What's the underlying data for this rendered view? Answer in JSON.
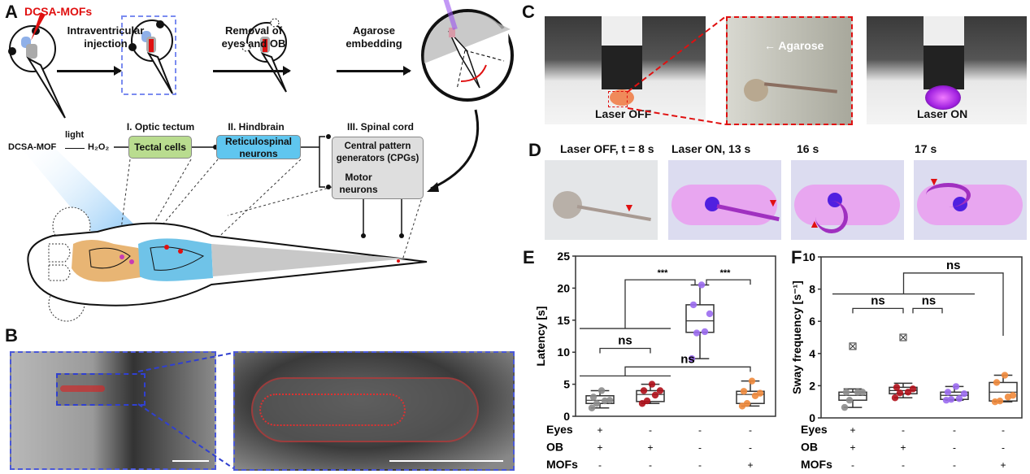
{
  "panels": {
    "A": {
      "letter": "A",
      "injectant": "DCSA-MOFs",
      "step1": "Intraventricular injection",
      "step2": "Removal of eyes and OB",
      "step3": "Agarose embedding",
      "region1": "I. Optic tectum",
      "region2": "II. Hindbrain",
      "region3": "III. Spinal cord",
      "reaction_reactant": "DCSA-MOF",
      "reaction_condition": "light",
      "reaction_product": "H₂O₂",
      "box_tectal": "Tectal cells",
      "box_reticulo": "Reticulospinal neurons",
      "box_cpg": "Central pattern generators (CPGs)",
      "box_motor": "Motor neurons"
    },
    "B": {
      "letter": "B"
    },
    "C": {
      "letter": "C",
      "photo1_label": "Laser OFF",
      "photo2_label": "Agarose",
      "photo3_label": "Laser ON"
    },
    "D": {
      "letter": "D",
      "frames": [
        "Laser OFF, t = 8 s",
        "Laser ON, 13 s",
        "16 s",
        "17 s"
      ]
    },
    "E": {
      "letter": "E"
    },
    "F": {
      "letter": "F"
    }
  },
  "colors": {
    "ctrl": "#8c8c8c",
    "no_eyes": "#b0101a",
    "no_eyes_ob": "#9b6cf0",
    "mofs": "#f08a3c",
    "accent_red": "#e01010",
    "dashed_blue": "#7b8cf0"
  },
  "chart_data": [
    {
      "type": "box",
      "panel": "E",
      "ylabel": "Latency [s]",
      "ylim": [
        0,
        25
      ],
      "yticks": [
        "0",
        "5",
        "10",
        "15",
        "20",
        "25"
      ],
      "condition_rows": [
        {
          "label": "Eyes",
          "values": [
            "+",
            "-",
            "-",
            "-"
          ]
        },
        {
          "label": "OB",
          "values": [
            "+",
            "+",
            "-",
            "-"
          ]
        },
        {
          "label": "MOFs",
          "values": [
            "-",
            "-",
            "-",
            "+"
          ]
        }
      ],
      "groups": [
        {
          "color": "#8c8c8c",
          "q1": 2.0,
          "median": 2.5,
          "q3": 3.2,
          "min": 1.3,
          "max": 4.0,
          "points": [
            1.3,
            2.0,
            2.4,
            2.5,
            3.0,
            4.0
          ],
          "outliers": []
        },
        {
          "color": "#b0101a",
          "q1": 2.3,
          "median": 3.4,
          "q3": 4.0,
          "min": 2.0,
          "max": 5.0,
          "points": [
            2.0,
            2.4,
            3.3,
            4.0,
            4.0,
            5.0
          ],
          "outliers": []
        },
        {
          "color": "#9b6cf0",
          "q1": 13.1,
          "median": 14.9,
          "q3": 17.4,
          "min": 9.0,
          "max": 20.5,
          "points": [
            9.0,
            13.0,
            13.2,
            16.0,
            17.4,
            20.5
          ],
          "outliers": []
        },
        {
          "color": "#f08a3c",
          "q1": 2.0,
          "median": 3.4,
          "q3": 3.9,
          "min": 1.6,
          "max": 5.5,
          "points": [
            1.6,
            2.0,
            3.2,
            3.6,
            3.9,
            5.5
          ],
          "outliers": []
        }
      ],
      "comparisons": [
        {
          "a": [
            0,
            1
          ],
          "b": [
            2
          ],
          "label": "***",
          "y_a": 13.7,
          "y": 21.3
        },
        {
          "a": [
            2
          ],
          "b": [
            3
          ],
          "label": "***",
          "y_a": 21.3,
          "y": 21.3
        },
        {
          "a": [
            0
          ],
          "b": [
            1
          ],
          "label": "ns",
          "y_a": 10.6,
          "y": 10.6
        },
        {
          "a": [
            0,
            1
          ],
          "b": [
            3
          ],
          "label": "ns",
          "y_a": 6.3,
          "y": 7.7
        }
      ]
    },
    {
      "type": "box",
      "panel": "F",
      "ylabel": "Sway frequency [s⁻¹]",
      "ylim": [
        0,
        10
      ],
      "yticks": [
        "0",
        "2",
        "4",
        "6",
        "8",
        "10"
      ],
      "condition_rows": [
        {
          "label": "Eyes",
          "values": [
            "+",
            "-",
            "-",
            "-"
          ]
        },
        {
          "label": "OB",
          "values": [
            "+",
            "+",
            "-",
            "-"
          ]
        },
        {
          "label": "MOFs",
          "values": [
            "-",
            "-",
            "-",
            "+"
          ]
        }
      ],
      "groups": [
        {
          "color": "#8c8c8c",
          "q1": 1.1,
          "median": 1.4,
          "q3": 1.6,
          "min": 0.65,
          "max": 1.8,
          "points": [
            0.65,
            1.1,
            1.6,
            1.6,
            1.6
          ],
          "outliers": [
            4.45
          ]
        },
        {
          "color": "#b0101a",
          "q1": 1.5,
          "median": 1.7,
          "q3": 1.9,
          "min": 1.25,
          "max": 2.15,
          "points": [
            1.25,
            1.55,
            1.6,
            1.8,
            1.9
          ],
          "outliers": [
            5.0
          ]
        },
        {
          "color": "#9b6cf0",
          "q1": 1.15,
          "median": 1.4,
          "q3": 1.6,
          "min": 1.1,
          "max": 1.95,
          "points": [
            1.1,
            1.15,
            1.2,
            1.5,
            1.6,
            1.95
          ],
          "outliers": []
        },
        {
          "color": "#f08a3c",
          "q1": 1.05,
          "median": 1.6,
          "q3": 2.2,
          "min": 1.0,
          "max": 2.65,
          "points": [
            1.0,
            1.05,
            1.3,
            1.4,
            2.2,
            2.65
          ],
          "outliers": []
        }
      ],
      "comparisons": [
        {
          "a": [
            0
          ],
          "b": [
            1
          ],
          "label": "ns",
          "y_a": 6.8,
          "y": 6.8
        },
        {
          "a": [
            1
          ],
          "b": [
            2
          ],
          "label": "ns",
          "y_a": 6.8,
          "y": 6.8
        },
        {
          "a": [
            0,
            1,
            2
          ],
          "b": [
            3
          ],
          "label": "ns",
          "y_a": 7.7,
          "y": 9.0,
          "b_end": 5.1
        }
      ]
    }
  ]
}
